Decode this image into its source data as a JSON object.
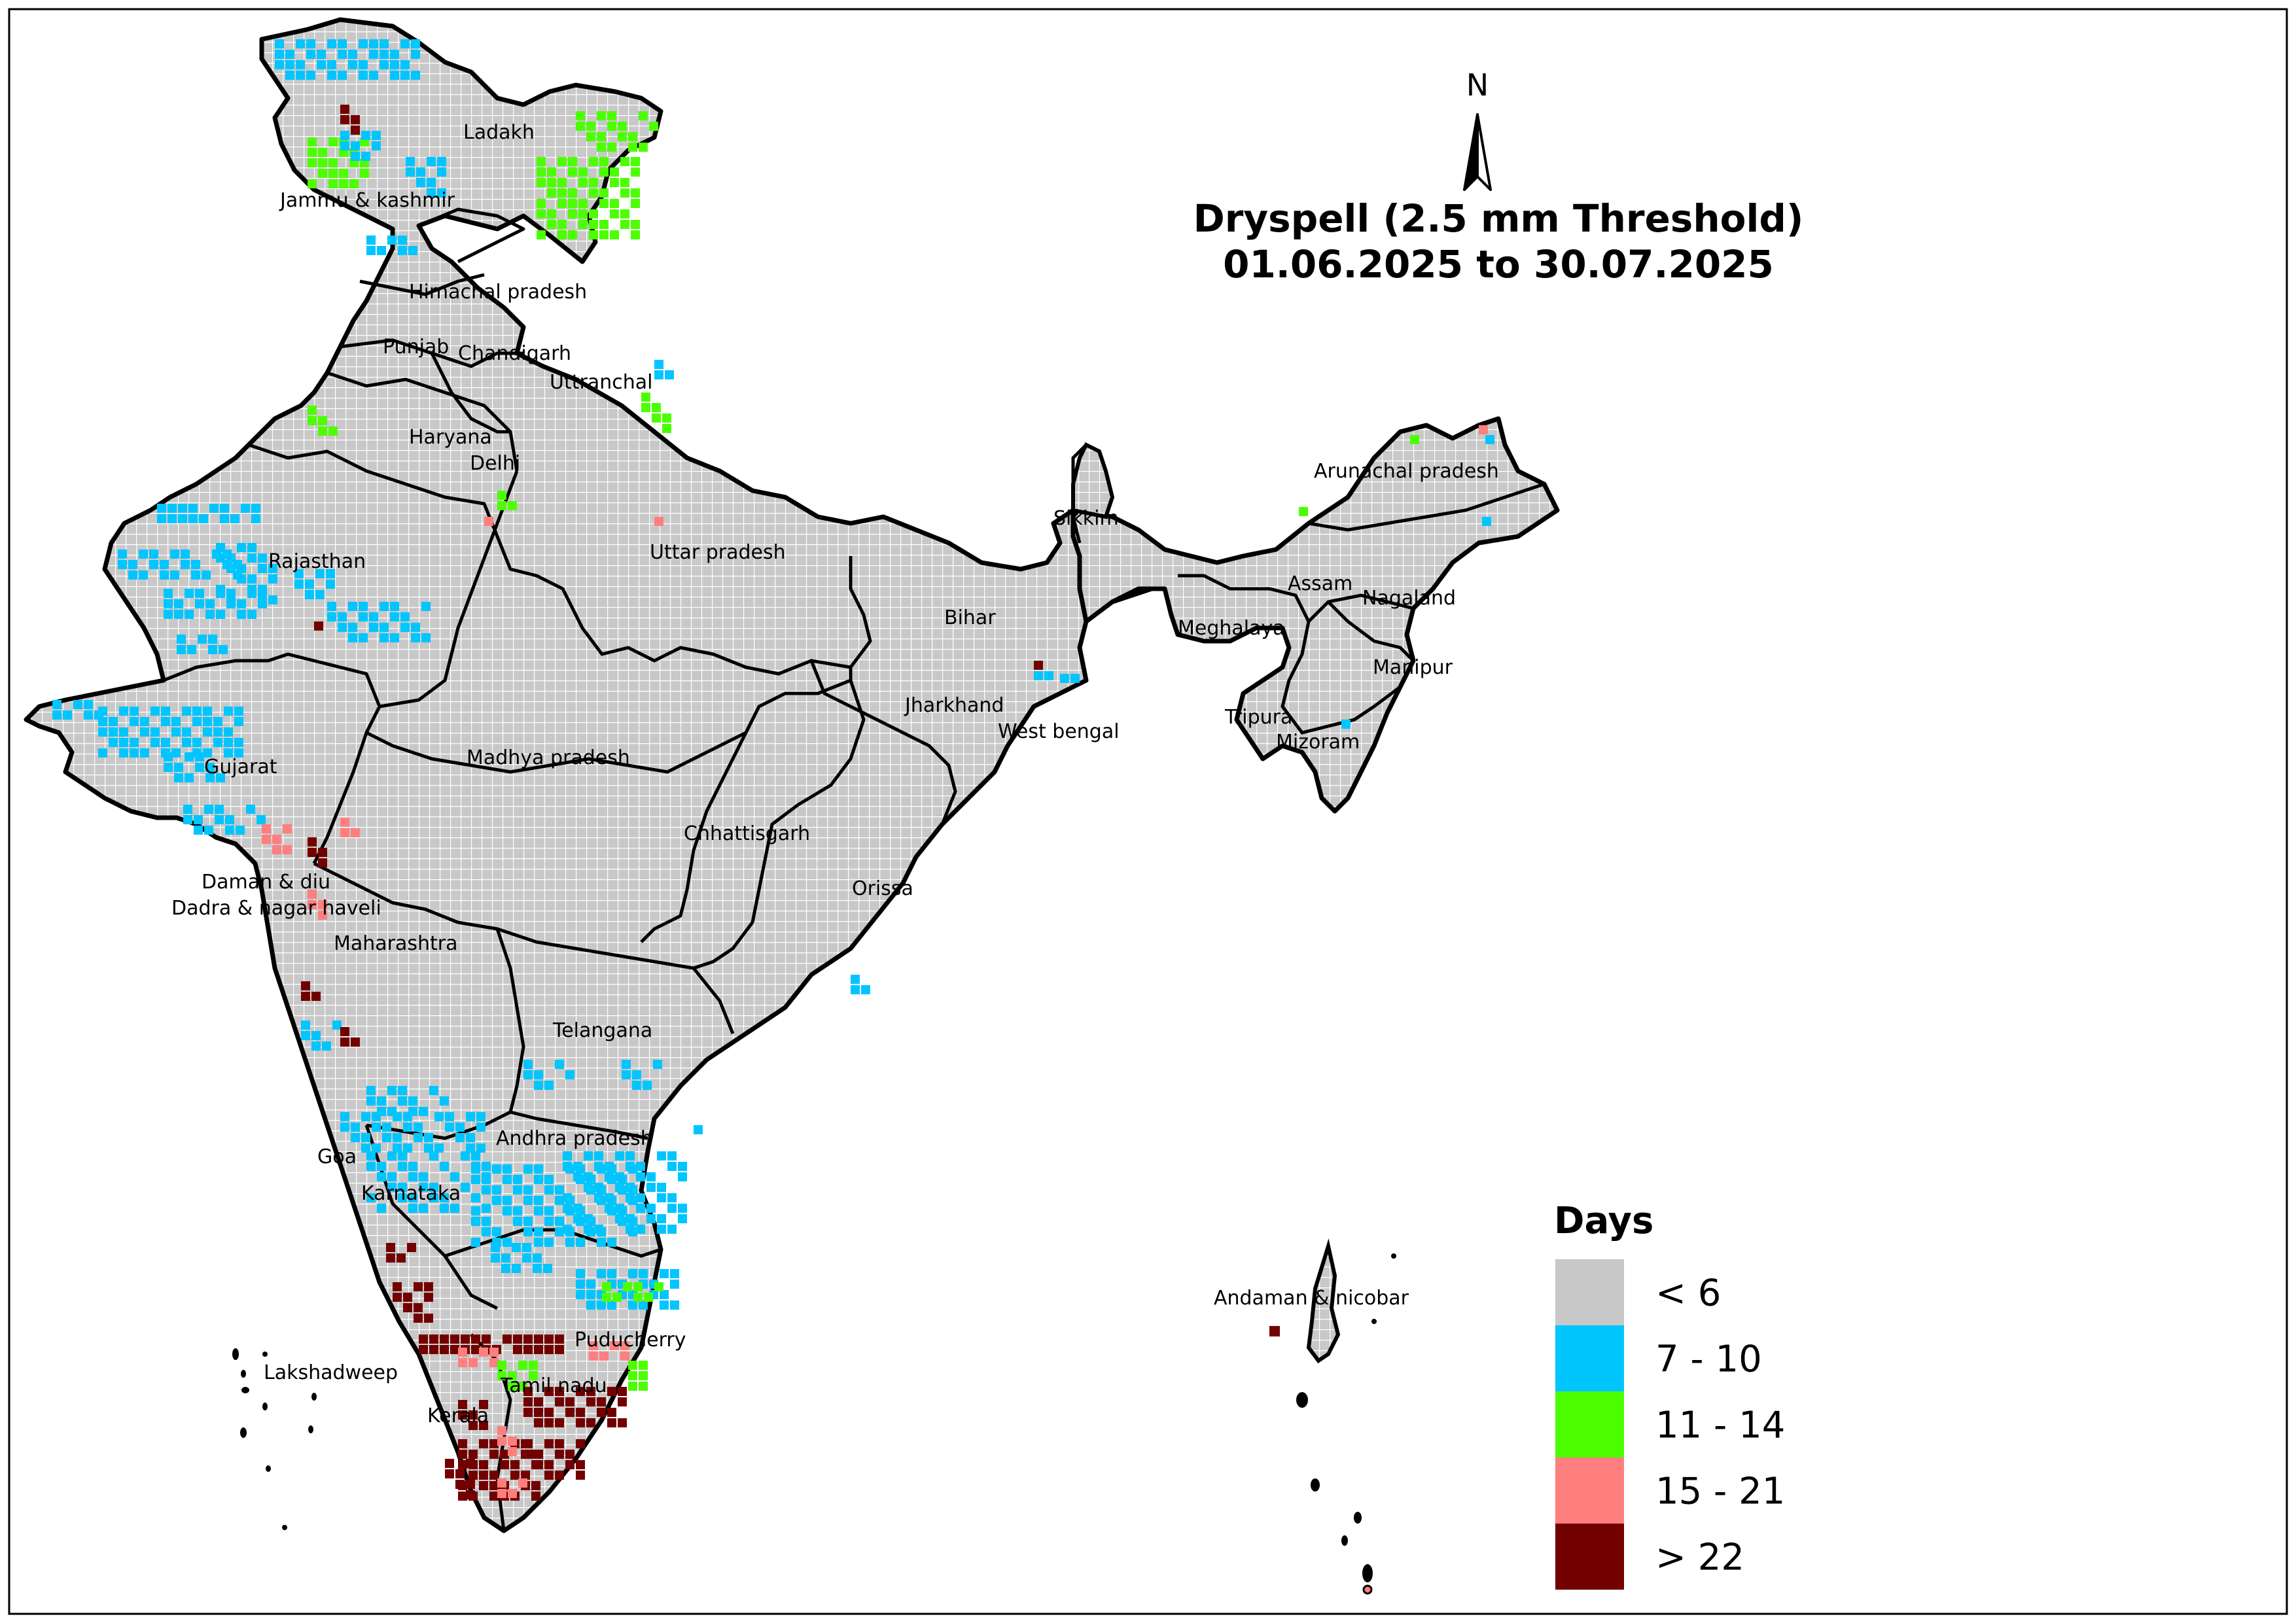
{
  "title": {
    "line1": "Dryspell (2.5 mm Threshold)",
    "line2": "01.06.2025 to 30.07.2025"
  },
  "north_arrow": {
    "label": "N"
  },
  "legend": {
    "title": "Days",
    "items": [
      {
        "label": "< 6",
        "color": "#c8c8c8"
      },
      {
        "label": "7 - 10",
        "color": "#00c5ff"
      },
      {
        "label": "11 - 14",
        "color": "#4cff00"
      },
      {
        "label": "15 - 21",
        "color": "#ff7f7f"
      },
      {
        "label": "> 22",
        "color": "#730000"
      }
    ]
  },
  "regions": [
    "Ladakh",
    "Jammu & kashmir",
    "Himachal pradesh",
    "Punjab",
    "Chandigarh",
    "Uttranchal",
    "Haryana",
    "Delhi",
    "Rajasthan",
    "Uttar pradesh",
    "Sikkim",
    "Arunachal pradesh",
    "Assam",
    "Nagaland",
    "Meghalaya",
    "Bihar",
    "Manipur",
    "Tripura",
    "Jharkhand",
    "West bengal",
    "Mizoram",
    "Gujarat",
    "Madhya pradesh",
    "Chhattisgarh",
    "Orissa",
    "Daman & diu",
    "Dadra & nagar haveli",
    "Maharashtra",
    "Telangana",
    "Andhra pradesh",
    "Goa",
    "Karnataka",
    "Andaman & nicobar",
    "Puducherry",
    "Lakshadweep",
    "Tamil nadu",
    "Kerala"
  ],
  "grid_colors": {
    "base": "#c8c8c8",
    "line": "#ffffff",
    "outline": "#000000"
  }
}
